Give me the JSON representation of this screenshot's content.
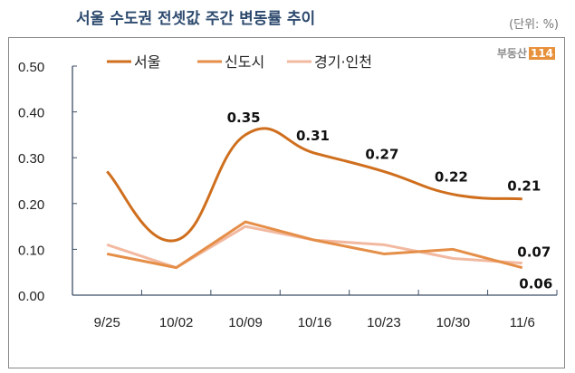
{
  "chart_data": {
    "type": "line",
    "title": "서울 수도권 전셋값 주간 변동률 추이",
    "unit_note": "(단위: %)",
    "logo": "부동산114",
    "categories": [
      "9/25",
      "10/02",
      "10/09",
      "10/16",
      "10/23",
      "10/30",
      "11/6"
    ],
    "ylim": [
      0,
      0.5
    ],
    "yticks": [
      "0.00",
      "0.10",
      "0.20",
      "0.30",
      "0.40",
      "0.50"
    ],
    "grid": false,
    "legend_placement": "top",
    "series": [
      {
        "name": "서울",
        "values": [
          0.27,
          0.12,
          0.35,
          0.31,
          0.27,
          0.22,
          0.21
        ],
        "color": "#cf6f1e",
        "smooth": true,
        "labels": [
          null,
          null,
          "0.35",
          "0.31",
          "0.27",
          "0.22",
          "0.21"
        ]
      },
      {
        "name": "신도시",
        "values": [
          0.09,
          0.06,
          0.16,
          0.12,
          0.09,
          0.1,
          0.06
        ],
        "color": "#e58e48",
        "smooth": false,
        "labels": [
          null,
          null,
          null,
          null,
          null,
          null,
          "0.06"
        ]
      },
      {
        "name": "경기·인천",
        "values": [
          0.11,
          0.06,
          0.15,
          0.12,
          0.11,
          0.08,
          0.07
        ],
        "color": "#f2b9a0",
        "smooth": false,
        "labels": [
          null,
          null,
          null,
          null,
          null,
          null,
          "0.07"
        ]
      }
    ]
  }
}
